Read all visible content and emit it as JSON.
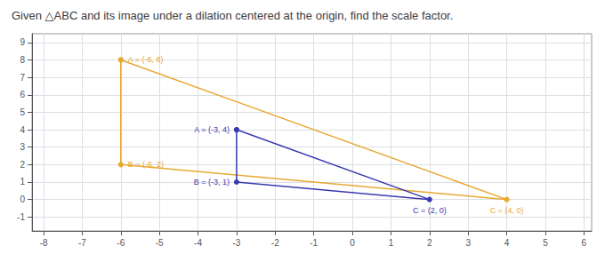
{
  "chart_data": {
    "type": "line",
    "title": "Given △ABC and its image under a dilation centered at the origin, find the scale factor.",
    "xlim": [
      -8.3,
      6.2
    ],
    "xticks": [
      -8,
      -7,
      -6,
      -5,
      -4,
      -3,
      -2,
      -1,
      0,
      1,
      2,
      3,
      4,
      5,
      6
    ],
    "ylim": [
      -1.8,
      9.5
    ],
    "yticks": [
      -1,
      0,
      1,
      2,
      3,
      4,
      5,
      6,
      7,
      8,
      9
    ],
    "grid": true,
    "marker": "circle",
    "data_labels": true,
    "series": [
      {
        "color": "#e8a832",
        "x": [
          -6,
          -6,
          4,
          -6
        ],
        "values": [
          8,
          2,
          0,
          8
        ],
        "value_labels": [
          "A = (-6, 8)",
          "B = (-6, 2)",
          "C = (4, 0)",
          null
        ]
      },
      {
        "color": "#3a3ab0",
        "x": [
          -3,
          -3,
          2,
          -3
        ],
        "values": [
          4,
          1,
          0,
          4
        ],
        "value_labels": [
          "A = (-3, 4)",
          "B = (-3, 1)",
          "C = (2, 0)",
          null
        ]
      }
    ]
  }
}
